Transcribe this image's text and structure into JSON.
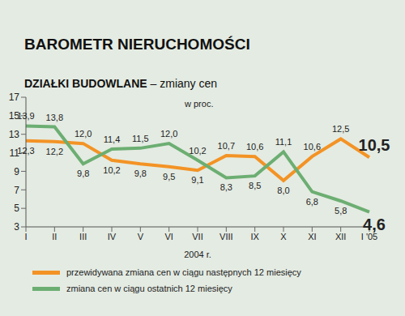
{
  "chart_data": {
    "type": "line",
    "title": "BAROMETR NIERUCHOMOŚCI",
    "subtitle": "DZIAŁKI BUDOWLANE – zmiany cen",
    "ylabel": "w proc.",
    "xlabel": "2004 r.",
    "categories": [
      "I",
      "II",
      "III",
      "IV",
      "V",
      "VI",
      "VII",
      "VIII",
      "IX",
      "X",
      "XI",
      "XII",
      "I '05"
    ],
    "series": [
      {
        "name": "przewidywana zmiana cen w ciągu następnych 12 miesięcy",
        "color": "#f39325",
        "values": [
          12.3,
          12.2,
          12.0,
          10.2,
          9.8,
          9.5,
          9.1,
          10.7,
          10.6,
          8.0,
          10.6,
          12.5,
          10.5
        ],
        "value_labels": [
          "12,3",
          "12,2",
          "12,0",
          "10,2",
          "9,8",
          "9,5",
          "9,1",
          "10,7",
          "10,6",
          "8,0",
          "10,6",
          "12,5",
          "10,5"
        ]
      },
      {
        "name": "zmiana cen w ciągu ostatnich 12 miesięcy",
        "color": "#6cae72",
        "values": [
          13.9,
          13.8,
          9.8,
          11.4,
          11.5,
          12.0,
          10.2,
          8.3,
          8.5,
          11.1,
          6.8,
          5.8,
          4.6
        ],
        "value_labels": [
          "13,9",
          "13,8",
          "9,8",
          "11,4",
          "11,5",
          "12,0",
          "10,2",
          "8,3",
          "8,5",
          "11,1",
          "6,8",
          "5,8",
          "4,6"
        ]
      }
    ],
    "ylim": [
      3,
      17
    ],
    "yticks": [
      3,
      5,
      7,
      9,
      11,
      13,
      15,
      17
    ],
    "grid": false,
    "data_labels": true
  }
}
